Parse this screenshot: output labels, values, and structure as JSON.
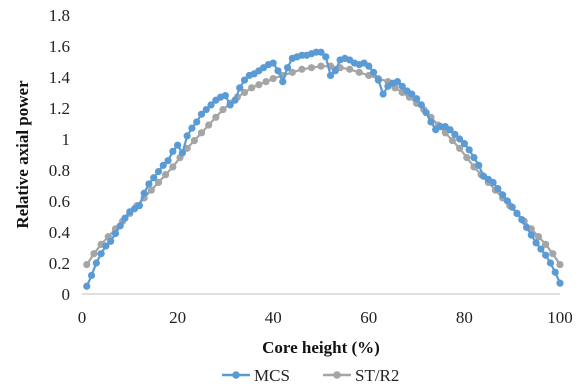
{
  "chart_data": {
    "type": "line",
    "xlabel": "Core height (%)",
    "ylabel": "Relative axial power",
    "xlim": [
      0,
      100
    ],
    "ylim": [
      0,
      1.8
    ],
    "x_ticks": [
      0,
      20,
      40,
      60,
      80,
      100
    ],
    "y_ticks": [
      0,
      0.2,
      0.4,
      0.6,
      0.8,
      1,
      1.2,
      1.4,
      1.6,
      1.8
    ],
    "y_tick_labels": [
      "0",
      "0.2",
      "0.4",
      "0.6",
      "0.8",
      "1",
      "1.2",
      "1.4",
      "1.6",
      "1.8"
    ],
    "grid": false,
    "legend": "bottom",
    "series": [
      {
        "name": "MCS",
        "color": "#5b9bd5",
        "x": [
          1,
          2,
          3,
          4,
          5,
          6,
          7,
          8,
          9,
          10,
          11,
          12,
          13,
          14,
          15,
          16,
          17,
          18,
          19,
          20,
          21,
          22,
          23,
          24,
          25,
          26,
          27,
          28,
          29,
          30,
          31,
          32,
          33,
          34,
          35,
          36,
          37,
          38,
          39,
          40,
          41,
          42,
          43,
          44,
          45,
          46,
          47,
          48,
          49,
          50,
          51,
          52,
          53,
          54,
          55,
          56,
          57,
          58,
          59,
          60,
          61,
          62,
          63,
          64,
          65,
          66,
          67,
          68,
          69,
          70,
          71,
          72,
          73,
          74,
          75,
          76,
          77,
          78,
          79,
          80,
          81,
          82,
          83,
          84,
          85,
          86,
          87,
          88,
          89,
          90,
          91,
          92,
          93,
          94,
          95,
          96,
          97,
          98,
          99,
          100
        ],
        "values": [
          0.05,
          0.12,
          0.2,
          0.26,
          0.31,
          0.34,
          0.39,
          0.44,
          0.49,
          0.53,
          0.55,
          0.57,
          0.65,
          0.71,
          0.75,
          0.79,
          0.83,
          0.86,
          0.92,
          0.96,
          0.91,
          1.02,
          1.07,
          1.11,
          1.16,
          1.19,
          1.22,
          1.25,
          1.27,
          1.28,
          1.22,
          1.25,
          1.33,
          1.38,
          1.41,
          1.42,
          1.44,
          1.46,
          1.48,
          1.49,
          1.44,
          1.37,
          1.46,
          1.52,
          1.53,
          1.54,
          1.54,
          1.55,
          1.56,
          1.56,
          1.53,
          1.41,
          1.44,
          1.51,
          1.52,
          1.51,
          1.49,
          1.48,
          1.49,
          1.47,
          1.43,
          1.38,
          1.29,
          1.34,
          1.36,
          1.37,
          1.34,
          1.31,
          1.29,
          1.26,
          1.22,
          1.17,
          1.11,
          1.06,
          1.08,
          1.08,
          1.06,
          1.03,
          1.0,
          0.97,
          0.93,
          0.88,
          0.83,
          0.76,
          0.74,
          0.72,
          0.68,
          0.64,
          0.6,
          0.56,
          0.52,
          0.48,
          0.43,
          0.38,
          0.33,
          0.29,
          0.25,
          0.2,
          0.14,
          0.07
        ]
      },
      {
        "name": "ST/R2",
        "color": "#a5a5a5",
        "x": [
          1,
          2.5,
          4,
          5.5,
          7,
          8.5,
          10,
          11.5,
          13,
          14.5,
          16,
          17.5,
          19,
          20.5,
          22,
          23.5,
          25,
          26.5,
          28,
          29.5,
          31,
          32.5,
          34,
          35.5,
          37,
          38.5,
          40,
          42,
          44,
          46,
          48,
          50,
          52,
          54,
          56,
          58,
          60,
          62,
          64,
          65.5,
          67,
          68.5,
          70,
          71.5,
          73,
          74.5,
          76,
          77.5,
          79,
          80.5,
          82,
          83.5,
          85,
          86.5,
          88,
          89.5,
          91,
          92.5,
          94,
          95.5,
          97,
          98.5,
          100
        ],
        "values": [
          0.19,
          0.26,
          0.32,
          0.37,
          0.42,
          0.47,
          0.52,
          0.57,
          0.62,
          0.67,
          0.72,
          0.77,
          0.82,
          0.88,
          0.94,
          0.99,
          1.04,
          1.09,
          1.14,
          1.19,
          1.23,
          1.27,
          1.3,
          1.33,
          1.35,
          1.37,
          1.39,
          1.41,
          1.43,
          1.45,
          1.46,
          1.47,
          1.47,
          1.46,
          1.45,
          1.43,
          1.41,
          1.39,
          1.37,
          1.33,
          1.3,
          1.27,
          1.23,
          1.19,
          1.14,
          1.09,
          1.04,
          0.99,
          0.94,
          0.88,
          0.82,
          0.77,
          0.72,
          0.67,
          0.62,
          0.57,
          0.52,
          0.47,
          0.42,
          0.37,
          0.32,
          0.26,
          0.19
        ]
      }
    ]
  }
}
